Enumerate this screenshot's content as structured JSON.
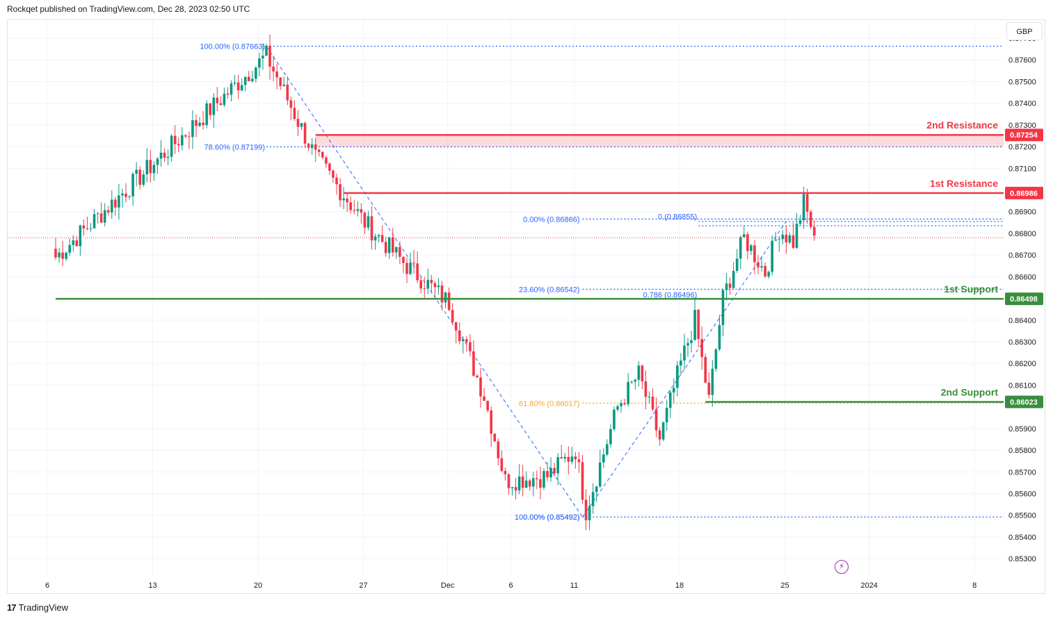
{
  "header": {
    "published": "Rockqet published on TradingView.com, Dec 28, 2023 02:50 UTC"
  },
  "currency_button": "GBP",
  "footer": {
    "brand": "TradingView",
    "mark": "17"
  },
  "bolt_icon": "lightning-icon",
  "chart_data": {
    "type": "candlestick",
    "title": "",
    "currency": "GBP",
    "ylim": [
      0.8523,
      0.8778
    ],
    "y_ticks": [
      "0.87700",
      "0.87600",
      "0.87500",
      "0.87400",
      "0.87300",
      "0.87200",
      "0.87100",
      "0.86900",
      "0.86800",
      "0.86700",
      "0.86600",
      "0.86400",
      "0.86300",
      "0.86200",
      "0.86100",
      "0.85900",
      "0.85800",
      "0.85700",
      "0.85600",
      "0.85500",
      "0.85400",
      "0.85300"
    ],
    "x_ticks": [
      {
        "label": "6",
        "bar": 0
      },
      {
        "label": "13",
        "bar": 30
      },
      {
        "label": "20",
        "bar": 60
      },
      {
        "label": "27",
        "bar": 90
      },
      {
        "label": "Dec",
        "bar": 114
      },
      {
        "label": "6",
        "bar": 132
      },
      {
        "label": "11",
        "bar": 150
      },
      {
        "label": "18",
        "bar": 180
      },
      {
        "label": "25",
        "bar": 210
      },
      {
        "label": "2024",
        "bar": 234
      },
      {
        "label": "8",
        "bar": 264
      }
    ],
    "last_price": 0.8678,
    "levels": [
      {
        "name": "2nd Resistance",
        "label": "2nd Resistance",
        "price_label": "0.87254",
        "value": 0.87254,
        "zone_low": 0.87199,
        "color": "#f23645",
        "start_bar": 74
      },
      {
        "name": "1st Resistance",
        "label": "1st Resistance",
        "price_label": "0.86986",
        "value": 0.86986,
        "color": "#f23645",
        "start_bar": 82
      },
      {
        "name": "1st Support",
        "label": "1st Support",
        "price_label": "0.86498",
        "value": 0.86498,
        "color": "#388e3c",
        "start_bar": 0
      },
      {
        "name": "2nd Support",
        "label": "2nd Support",
        "price_label": "0.86023",
        "value": 0.86023,
        "color": "#388e3c",
        "start_bar": 185
      }
    ],
    "fib_labels": [
      {
        "text": "100.00% (0.87663)",
        "value": 0.87663,
        "start_bar": 60,
        "color": "#2962ff"
      },
      {
        "text": "78.60% (0.87199)",
        "value": 0.87199,
        "start_bar": 60,
        "color": "#2962ff"
      },
      {
        "text": "0.00% (0.85492)",
        "value": 0.85492,
        "start_bar": 150,
        "color": "#2962ff"
      },
      {
        "text": "0.00% (0.86866)",
        "value": 0.86866,
        "start_bar": 150,
        "color": "#2962ff"
      },
      {
        "text": "23.60% (0.86542)",
        "value": 0.86542,
        "start_bar": 150,
        "color": "#2962ff"
      },
      {
        "text": "61.80% (0.86017)",
        "value": 0.86017,
        "start_bar": 150,
        "color": "#f5a623"
      },
      {
        "text": "100.00% (0.85492)",
        "value": 0.85492,
        "start_bar": 150,
        "color": "#2962ff"
      },
      {
        "text": "0 (0.86855)",
        "value": 0.86855,
        "start_bar": 185,
        "color": "#2962ff"
      },
      {
        "text": "0.786 (0.86496)",
        "value": 0.86496,
        "start_bar": 185,
        "color": "#2962ff"
      }
    ],
    "fib_lines": [
      {
        "value": 0.87663,
        "from_bar": 60
      },
      {
        "value": 0.87199,
        "from_bar": 60
      },
      {
        "value": 0.85492,
        "from_bar": 150
      },
      {
        "value": 0.86866,
        "from_bar": 150
      },
      {
        "value": 0.86542,
        "from_bar": 150
      },
      {
        "value": 0.86017,
        "from_bar": 150
      },
      {
        "value": 0.86855,
        "from_bar": 185
      },
      {
        "value": 0.86835,
        "from_bar": 185
      },
      {
        "value": 0.86496,
        "from_bar": 185
      }
    ],
    "trend_lines": [
      {
        "from_bar": 60,
        "from": 0.87663,
        "to_bar": 150,
        "to": 0.85492
      },
      {
        "from_bar": 150,
        "from": 0.85492,
        "to_bar": 208,
        "to": 0.86855
      }
    ],
    "anchors": [
      {
        "bar": 0,
        "price": 0.8669
      },
      {
        "bar": 60,
        "price": 0.8762
      },
      {
        "bar": 74,
        "price": 0.8715
      },
      {
        "bar": 88,
        "price": 0.8685
      },
      {
        "bar": 100,
        "price": 0.8665
      },
      {
        "bar": 112,
        "price": 0.8648
      },
      {
        "bar": 122,
        "price": 0.8605
      },
      {
        "bar": 128,
        "price": 0.8566
      },
      {
        "bar": 140,
        "price": 0.8568
      },
      {
        "bar": 148,
        "price": 0.858
      },
      {
        "bar": 151,
        "price": 0.8552
      },
      {
        "bar": 160,
        "price": 0.86
      },
      {
        "bar": 166,
        "price": 0.8615
      },
      {
        "bar": 172,
        "price": 0.8585
      },
      {
        "bar": 178,
        "price": 0.862
      },
      {
        "bar": 182,
        "price": 0.864
      },
      {
        "bar": 186,
        "price": 0.8603
      },
      {
        "bar": 190,
        "price": 0.865
      },
      {
        "bar": 196,
        "price": 0.8678
      },
      {
        "bar": 202,
        "price": 0.8662
      },
      {
        "bar": 206,
        "price": 0.8682
      },
      {
        "bar": 210,
        "price": 0.8676
      },
      {
        "bar": 213,
        "price": 0.8694
      },
      {
        "bar": 216,
        "price": 0.8679
      }
    ],
    "colors": {
      "up": "#089981",
      "down": "#f23645",
      "grid": "#f0f3fa",
      "fib": "#2962ff",
      "fib61": "#f5a623"
    }
  }
}
